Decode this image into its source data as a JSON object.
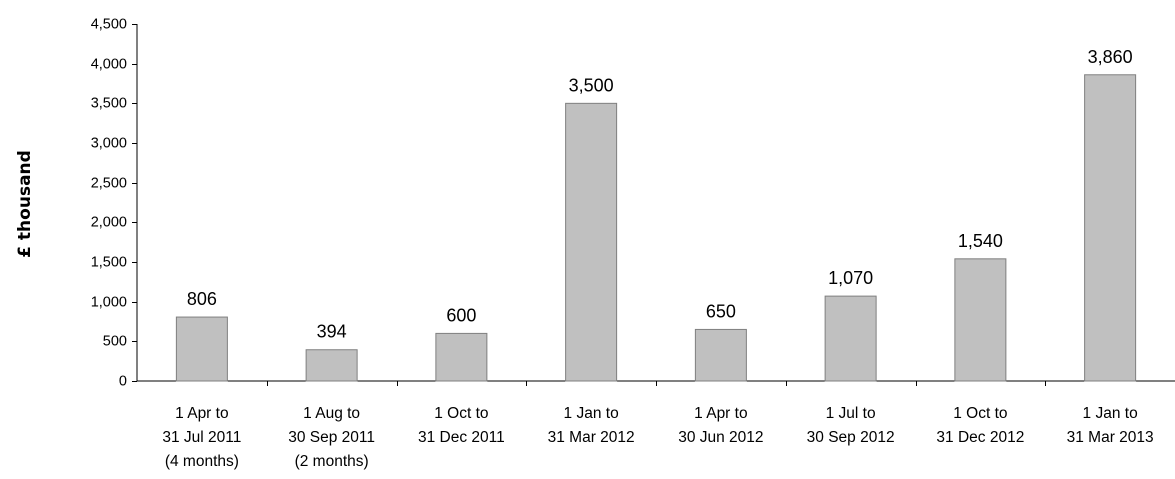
{
  "chart_data": {
    "type": "bar",
    "title": "",
    "xlabel": "",
    "ylabel": "£ thousand",
    "ylim": [
      0,
      4500
    ],
    "yticks": [
      0,
      500,
      1000,
      1500,
      2000,
      2500,
      3000,
      3500,
      4000,
      4500
    ],
    "ytick_labels": [
      "0",
      "500",
      "1,000",
      "1,500",
      "2,000",
      "2,500",
      "3,000",
      "3,500",
      "4,000",
      "4,500"
    ],
    "grid": false,
    "legend": "none",
    "categories": [
      [
        "1 Apr to",
        "31 Jul 2011",
        "(4 months)"
      ],
      [
        "1 Aug to",
        "30 Sep 2011",
        "(2 months)"
      ],
      [
        "1 Oct to",
        "31 Dec 2011"
      ],
      [
        "1 Jan to",
        "31 Mar 2012"
      ],
      [
        "1 Apr to",
        "30 Jun 2012"
      ],
      [
        "1 Jul to",
        "30 Sep 2012"
      ],
      [
        "1 Oct to",
        "31 Dec 2012"
      ],
      [
        "1 Jan to",
        "31 Mar 2013"
      ]
    ],
    "values": [
      806,
      394,
      600,
      3500,
      650,
      1070,
      1540,
      3860
    ],
    "value_labels": [
      "806",
      "394",
      "600",
      "3,500",
      "650",
      "1,070",
      "1,540",
      "3,860"
    ],
    "colors": {
      "bar_fill": "#c0c0c0",
      "bar_stroke": "#7f7f7f",
      "axis": "#000000"
    }
  }
}
